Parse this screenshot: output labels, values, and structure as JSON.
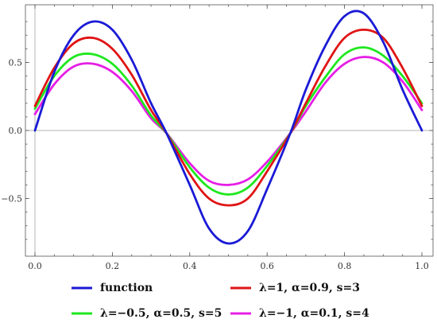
{
  "chart_data": {
    "type": "line",
    "title": "",
    "xlabel": "",
    "ylabel": "",
    "xlim": [
      0.0,
      1.0
    ],
    "ylim": [
      -0.9,
      0.9
    ],
    "grid": false,
    "legend_position": "bottom",
    "x_ticks": [
      {
        "value": 0.0,
        "label": "0.0"
      },
      {
        "value": 0.2,
        "label": "0.2"
      },
      {
        "value": 0.4,
        "label": "0.4"
      },
      {
        "value": 0.6,
        "label": "0.6"
      },
      {
        "value": 0.8,
        "label": "0.8"
      },
      {
        "value": 1.0,
        "label": "1.0"
      }
    ],
    "y_ticks": [
      {
        "value": -0.5,
        "label": "−0.5"
      },
      {
        "value": 0.0,
        "label": "0.0"
      },
      {
        "value": 0.5,
        "label": "0.5"
      }
    ],
    "x": [
      0.0,
      0.05,
      0.1,
      0.15,
      0.2,
      0.25,
      0.3,
      0.34,
      0.4,
      0.45,
      0.5,
      0.55,
      0.6,
      0.66,
      0.7,
      0.75,
      0.8,
      0.85,
      0.9,
      0.95,
      1.0
    ],
    "series": [
      {
        "name": "function",
        "color": "#1a1ad6",
        "values": [
          0.0,
          0.43,
          0.7,
          0.8,
          0.74,
          0.52,
          0.2,
          -0.02,
          -0.4,
          -0.72,
          -0.83,
          -0.74,
          -0.43,
          -0.02,
          0.3,
          0.62,
          0.84,
          0.86,
          0.65,
          0.3,
          0.0
        ]
      },
      {
        "name": "λ=1, α=0.9, s=3",
        "color": "#e01414",
        "values": [
          0.18,
          0.46,
          0.64,
          0.68,
          0.6,
          0.41,
          0.15,
          -0.02,
          -0.32,
          -0.5,
          -0.55,
          -0.5,
          -0.3,
          -0.02,
          0.2,
          0.47,
          0.68,
          0.74,
          0.68,
          0.46,
          0.18
        ]
      },
      {
        "name": "λ=−0.5, α=0.5, s=5",
        "color": "#1ee81e",
        "values": [
          0.16,
          0.4,
          0.54,
          0.56,
          0.49,
          0.33,
          0.11,
          -0.02,
          -0.27,
          -0.42,
          -0.47,
          -0.42,
          -0.26,
          -0.02,
          0.18,
          0.39,
          0.56,
          0.61,
          0.55,
          0.4,
          0.2
        ]
      },
      {
        "name": "λ=−1, α=0.1, s=4",
        "color": "#e61ee6",
        "values": [
          0.12,
          0.34,
          0.47,
          0.49,
          0.43,
          0.29,
          0.09,
          -0.02,
          -0.24,
          -0.37,
          -0.4,
          -0.36,
          -0.23,
          -0.02,
          0.14,
          0.35,
          0.49,
          0.54,
          0.5,
          0.36,
          0.15
        ]
      }
    ],
    "legend_order": [
      0,
      1,
      2,
      3
    ]
  }
}
